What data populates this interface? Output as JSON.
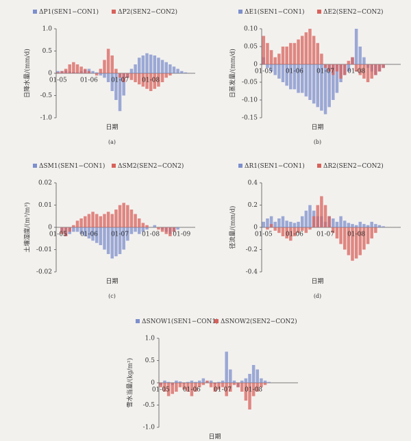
{
  "chart_data": [
    {
      "type": "bar",
      "caption": "(a)",
      "y_label": "日降水量/(mm/d)",
      "x_label": "日期",
      "categories": [
        "01-05",
        null,
        null,
        null,
        null,
        null,
        null,
        null,
        "01-06",
        null,
        null,
        null,
        null,
        null,
        null,
        null,
        "01-07",
        null,
        null,
        null,
        null,
        null,
        null,
        null,
        "01-08",
        null,
        null,
        null,
        null,
        null,
        null,
        null,
        null,
        null,
        null,
        null
      ],
      "series": [
        {
          "name": "ΔP1(SEN1−CON1)",
          "color": "#7d8fcc",
          "values": [
            0.05,
            0.05,
            0.06,
            0.04,
            0.03,
            0.02,
            0.05,
            0.08,
            0.1,
            0.05,
            0.02,
            -0.05,
            -0.1,
            -0.2,
            -0.4,
            -0.6,
            -0.85,
            -0.5,
            -0.1,
            0.1,
            0.2,
            0.35,
            0.4,
            0.45,
            0.42,
            0.4,
            0.35,
            0.3,
            0.25,
            0.2,
            0.15,
            0.1,
            0.05,
            0.02,
            0,
            0
          ]
        },
        {
          "name": "ΔP2(SEN2−CON2)",
          "color": "#d8625c",
          "values": [
            0.02,
            0.05,
            0.1,
            0.2,
            0.25,
            0.2,
            0.15,
            0.1,
            0.05,
            0,
            -0.05,
            0.1,
            0.3,
            0.55,
            0.4,
            0.1,
            -0.1,
            -0.2,
            -0.1,
            -0.15,
            -0.2,
            -0.25,
            -0.3,
            -0.35,
            -0.4,
            -0.35,
            -0.3,
            -0.2,
            -0.1,
            -0.05,
            0,
            0,
            0,
            0,
            0,
            0
          ]
        }
      ],
      "ylim": [
        -1,
        1
      ],
      "yticks": [
        {
          "value": 1,
          "label": "1.0"
        },
        0.5,
        0,
        -0.5,
        {
          "value": -1,
          "label": "-1.0"
        }
      ]
    },
    {
      "type": "bar",
      "caption": "(b)",
      "y_label": "日蒸发量/(mm/d)",
      "x_label": "日期",
      "categories": [
        "01-05",
        null,
        null,
        null,
        null,
        null,
        null,
        null,
        "01-06",
        null,
        null,
        null,
        null,
        null,
        null,
        null,
        "01-07",
        null,
        null,
        null,
        null,
        null,
        null,
        null,
        "01-08",
        null,
        null,
        null,
        null,
        null,
        null,
        null,
        null,
        null,
        null,
        null
      ],
      "series": [
        {
          "name": "ΔE1(SEN1−CON1)",
          "color": "#7d8fcc",
          "values": [
            0.02,
            -0.01,
            -0.02,
            -0.03,
            -0.04,
            -0.05,
            -0.06,
            -0.07,
            -0.07,
            -0.08,
            -0.08,
            -0.09,
            -0.1,
            -0.11,
            -0.12,
            -0.13,
            -0.14,
            -0.12,
            -0.1,
            -0.08,
            -0.05,
            -0.03,
            -0.02,
            0.02,
            0.1,
            0.05,
            0.02,
            -0.01,
            -0.02,
            -0.03,
            -0.02,
            -0.01,
            0,
            0,
            0,
            0
          ]
        },
        {
          "name": "ΔE2(SEN2−CON2)",
          "color": "#d8625c",
          "values": [
            0.08,
            0.06,
            0.04,
            0.02,
            0.03,
            0.05,
            0.05,
            0.06,
            0.06,
            0.07,
            0.08,
            0.09,
            0.1,
            0.08,
            0.06,
            0.03,
            -0.01,
            -0.02,
            -0.03,
            -0.02,
            -0.04,
            -0.03,
            0.01,
            0.02,
            -0.02,
            -0.03,
            -0.04,
            -0.05,
            -0.04,
            -0.03,
            -0.02,
            -0.01,
            0,
            0,
            0,
            0
          ]
        }
      ],
      "ylim": [
        -0.15,
        0.1
      ],
      "yticks": [
        {
          "value": 0.1,
          "label": "0.10"
        },
        0.05,
        0,
        -0.05,
        {
          "value": -0.1,
          "label": "-0.10"
        },
        -0.15
      ]
    },
    {
      "type": "bar",
      "caption": "(c)",
      "y_label": "土壤湿度/(m³/m³)",
      "x_label": "日期",
      "categories": [
        "01-05",
        null,
        null,
        null,
        null,
        null,
        null,
        null,
        "01-06",
        null,
        null,
        null,
        null,
        null,
        null,
        null,
        "01-07",
        null,
        null,
        null,
        null,
        null,
        null,
        null,
        "01-08",
        null,
        null,
        null,
        null,
        null,
        null,
        null,
        "01-09",
        null,
        null,
        null
      ],
      "series": [
        {
          "name": "ΔSM1(SEN1−CON1)",
          "color": "#7d8fcc",
          "values": [
            0,
            -0.002,
            -0.004,
            -0.003,
            -0.002,
            -0.002,
            -0.003,
            -0.004,
            -0.005,
            -0.006,
            -0.007,
            -0.008,
            -0.01,
            -0.012,
            -0.014,
            -0.013,
            -0.012,
            -0.01,
            -0.006,
            -0.003,
            -0.002,
            -0.003,
            -0.002,
            -0.001,
            0,
            0.001,
            0,
            -0.001,
            -0.002,
            -0.003,
            -0.002,
            -0.001,
            0,
            0,
            0,
            0
          ]
        },
        {
          "name": "ΔSM2(SEN2−CON2)",
          "color": "#d8625c",
          "values": [
            0,
            -0.003,
            -0.004,
            -0.002,
            0.001,
            0.003,
            0.004,
            0.005,
            0.006,
            0.007,
            0.006,
            0.005,
            0.006,
            0.007,
            0.006,
            0.008,
            0.01,
            0.011,
            0.01,
            0.008,
            0.006,
            0.004,
            0.002,
            0.001,
            0,
            0,
            -0.001,
            -0.002,
            -0.003,
            -0.004,
            -0.002,
            0,
            0,
            0,
            0,
            0
          ]
        }
      ],
      "ylim": [
        -0.02,
        0.02
      ],
      "yticks": [
        0.02,
        0.01,
        0,
        -0.01,
        -0.02
      ]
    },
    {
      "type": "bar",
      "caption": "(d)",
      "y_label": "径流量/(mm/d)",
      "x_label": "日期",
      "categories": [
        "01-05",
        null,
        null,
        null,
        null,
        null,
        null,
        null,
        "01-06",
        null,
        null,
        null,
        null,
        null,
        null,
        null,
        "01-07",
        null,
        null,
        null,
        null,
        null,
        null,
        null,
        "01-08",
        null,
        null,
        null,
        null,
        null,
        null,
        null,
        null,
        null,
        null,
        null
      ],
      "series": [
        {
          "name": "ΔR1(SEN1−CON1)",
          "color": "#7d8fcc",
          "values": [
            0.05,
            0.08,
            0.1,
            0.05,
            0.08,
            0.1,
            0.06,
            0.05,
            0.04,
            0.05,
            0.1,
            0.15,
            0.2,
            0.15,
            0.1,
            0.1,
            0.05,
            0.1,
            0.08,
            0.05,
            0.1,
            0.06,
            0.04,
            0.03,
            0.02,
            0.05,
            0.03,
            0.02,
            0.05,
            0.03,
            0.02,
            0.01,
            0,
            0,
            0,
            0
          ]
        },
        {
          "name": "ΔR2(SEN2−CON2)",
          "color": "#d8625c",
          "values": [
            0,
            -0.02,
            0.03,
            -0.03,
            -0.05,
            -0.08,
            -0.1,
            -0.12,
            -0.08,
            -0.05,
            -0.03,
            -0.05,
            -0.02,
            0.1,
            0.2,
            0.28,
            0.2,
            0.1,
            -0.05,
            -0.1,
            -0.15,
            -0.2,
            -0.25,
            -0.3,
            -0.28,
            -0.25,
            -0.2,
            -0.15,
            -0.1,
            -0.05,
            0,
            0,
            0,
            0,
            0,
            0
          ]
        }
      ],
      "ylim": [
        -0.4,
        0.4
      ],
      "yticks": [
        0.4,
        0.2,
        0,
        -0.2,
        -0.4
      ]
    },
    {
      "type": "bar",
      "caption": "(e)",
      "y_label": "雪水当量/(kg/m²)",
      "x_label": "日期",
      "categories": [
        "01-05",
        null,
        null,
        null,
        null,
        null,
        null,
        null,
        "01-06",
        null,
        null,
        null,
        null,
        null,
        null,
        null,
        "01-07",
        null,
        null,
        null,
        null,
        null,
        null,
        null,
        "01-08",
        null,
        null,
        null,
        null,
        null,
        null,
        null,
        null,
        null,
        null,
        null
      ],
      "series": [
        {
          "name": "ΔSNOW1(SEN1−CON1)",
          "color": "#7d8fcc",
          "values": [
            -0.05,
            0.05,
            0.02,
            -0.05,
            0.05,
            0.03,
            -0.02,
            0.02,
            0.05,
            0.02,
            0.05,
            0.1,
            0.03,
            0.05,
            -0.03,
            0.02,
            0.05,
            0.7,
            0.3,
            0.05,
            -0.1,
            0.05,
            0.1,
            0.2,
            0.4,
            0.3,
            0.1,
            0.05,
            0.02,
            0,
            0,
            0,
            0,
            0,
            0,
            0
          ]
        },
        {
          "name": "ΔSNOW2(SEN2−CON2)",
          "color": "#d8625c",
          "values": [
            -0.1,
            -0.2,
            -0.3,
            -0.25,
            -0.2,
            -0.1,
            -0.15,
            -0.2,
            -0.3,
            -0.2,
            -0.1,
            -0.05,
            0.05,
            -0.1,
            -0.2,
            -0.15,
            -0.1,
            -0.3,
            -0.2,
            -0.05,
            -0.1,
            -0.2,
            -0.4,
            -0.6,
            -0.3,
            -0.2,
            -0.1,
            -0.05,
            0,
            0,
            0,
            0,
            0,
            0,
            0,
            0
          ]
        }
      ],
      "ylim": [
        -1,
        1
      ],
      "yticks": [
        {
          "value": 1,
          "label": "1.0"
        },
        0.5,
        0,
        -0.5,
        {
          "value": -1,
          "label": "-1.0"
        }
      ]
    }
  ]
}
